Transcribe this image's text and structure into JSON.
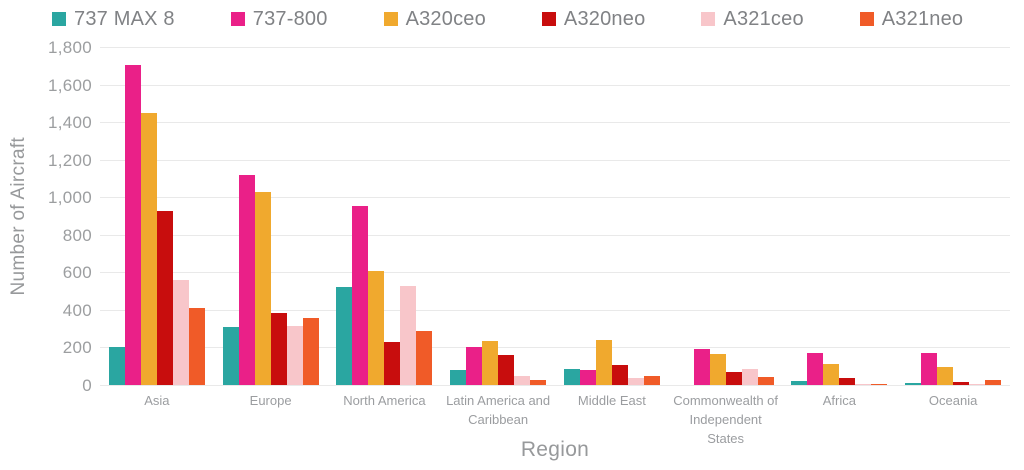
{
  "chart_data": {
    "type": "bar",
    "title": "",
    "xlabel": "Region",
    "ylabel": "Number of Aircraft",
    "ylim": [
      0,
      1800
    ],
    "ytick_step": 200,
    "grid": "horizontal",
    "legend_position": "top",
    "categories": [
      "Asia",
      "Europe",
      "North America",
      "Latin America and Caribbean",
      "Middle East",
      "Commonwealth of Independent States",
      "Africa",
      "Oceania"
    ],
    "series": [
      {
        "name": "737 MAX 8",
        "color": "#2aa6a1",
        "values": [
          205,
          310,
          520,
          80,
          85,
          0,
          20,
          12
        ]
      },
      {
        "name": "737-800",
        "color": "#ea2088",
        "values": [
          1705,
          1120,
          955,
          200,
          80,
          190,
          170,
          170
        ]
      },
      {
        "name": "A320ceo",
        "color": "#f0a92e",
        "values": [
          1450,
          1030,
          605,
          235,
          240,
          165,
          110,
          95
        ]
      },
      {
        "name": "A320neo",
        "color": "#c80d0d",
        "values": [
          925,
          385,
          230,
          160,
          105,
          70,
          35,
          15
        ]
      },
      {
        "name": "A321ceo",
        "color": "#f8c6ca",
        "values": [
          560,
          315,
          525,
          50,
          40,
          85,
          5,
          3
        ]
      },
      {
        "name": "A321neo",
        "color": "#f05b28",
        "values": [
          410,
          355,
          290,
          25,
          50,
          45,
          8,
          28
        ]
      }
    ],
    "colors": {
      "gridline": "#e9e9e9",
      "tick_text": "#9c9ea0",
      "axis_title_text": "#97999b",
      "legend_text": "#808285",
      "background": "#ffffff"
    }
  }
}
